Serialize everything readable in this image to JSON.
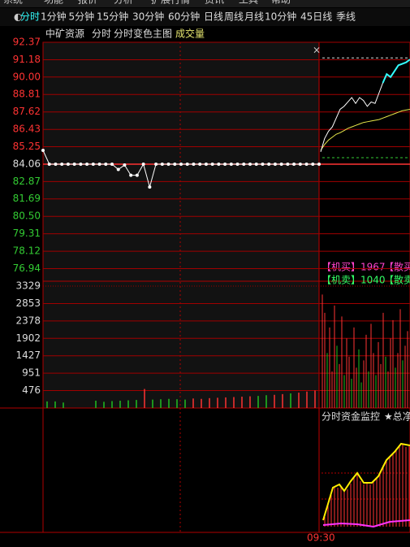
{
  "menu": [
    "系统",
    "功能",
    "报价",
    "分析",
    "扩展行情",
    "资讯",
    "工具",
    "帮助"
  ],
  "tabs": [
    "分时",
    "1分钟",
    "5分钟",
    "15分钟",
    "30分钟",
    "60分钟",
    "日线",
    "周线",
    "月线",
    "10分钟",
    "45日线",
    "季线"
  ],
  "header": {
    "stock": "中矿资源",
    "mode": "分时",
    "main_chart": "分时变色主图",
    "indicator": "成交量"
  },
  "close_button": "×",
  "price_chart": {
    "ylim": [
      76.3,
      92.37
    ],
    "yticks": [
      92.37,
      91.18,
      {
        "value": 90,
        "label": "90.00"
      },
      88.81,
      87.62,
      86.43,
      85.25,
      84.06,
      82.87,
      81.69,
      {
        "value": 80.5,
        "label": "80.50"
      },
      79.31,
      78.12,
      76.94
    ],
    "reference": 84.06,
    "prev_session": [
      85.0,
      84.06,
      84.06,
      84.06,
      84.06,
      84.06,
      84.06,
      84.06,
      84.06,
      84.06,
      84.06,
      84.06,
      83.7,
      84.0,
      83.3,
      83.3,
      84.06,
      82.5,
      84.06,
      84.06,
      84.06,
      84.06,
      84.06,
      84.06,
      84.06,
      84.06,
      84.06,
      84.06,
      84.06,
      84.06,
      84.06,
      84.06,
      84.06,
      84.06,
      84.06,
      84.06,
      84.06,
      84.06,
      84.06,
      84.06,
      84.06,
      84.06,
      84.06,
      84.06,
      84.06
    ],
    "price": [
      84.9,
      85.8,
      86.3,
      86.6,
      87.2,
      87.8,
      88.0,
      88.3,
      88.6,
      88.2,
      88.6,
      88.4,
      88.0,
      88.3,
      88.2,
      88.9,
      89.6,
      90.2,
      90.0,
      90.4,
      90.8,
      90.9,
      91.0,
      91.2
    ],
    "average": [
      85.0,
      85.4,
      85.7,
      85.9,
      86.1,
      86.2,
      86.35,
      86.5,
      86.6,
      86.7,
      86.8,
      86.9,
      86.95,
      87.0,
      87.05,
      87.1,
      87.2,
      87.3,
      87.4,
      87.5,
      87.6,
      87.7,
      87.75,
      87.8
    ],
    "upper_level": 91.3,
    "lower_level": 84.5
  },
  "flow": {
    "inst_buy": "【机买】1967",
    "retail_buy": "【散买",
    "inst_sell": "【机卖】1040",
    "retail_sell": "【散卖"
  },
  "volume_chart": {
    "ylim": [
      0,
      3329
    ],
    "yticks": [
      3329,
      2853,
      2378,
      1902,
      1427,
      951,
      476
    ],
    "prev_session": [
      180,
      180,
      150,
      0,
      0,
      0,
      200,
      170,
      190,
      200,
      210,
      220,
      520,
      230,
      240,
      250,
      240,
      230,
      260,
      250,
      270,
      280,
      290,
      300,
      310,
      320,
      330,
      350,
      360,
      380,
      400,
      420,
      450,
      480
    ],
    "prev_colors": [
      "#1fc01f",
      "#1fc01f",
      "#1fc01f",
      "#1fc01f",
      "#1fc01f",
      "#1fc01f",
      "#1fc01f",
      "#1fc01f",
      "#1fc01f",
      "#1fc01f",
      "#1fc01f",
      "#1fc01f",
      "#ff3333",
      "#1fc01f",
      "#1fc01f",
      "#1fc01f",
      "#1fc01f",
      "#1fc01f",
      "#ff3333",
      "#ff3333",
      "#ff3333",
      "#ff3333",
      "#ff3333",
      "#ff3333",
      "#ff3333",
      "#ff3333",
      "#1fc01f",
      "#1fc01f",
      "#ff3333",
      "#ff3333",
      "#1fc01f",
      "#ff3333",
      "#ff3333",
      "#ff3333"
    ],
    "bars": [
      3100,
      2600,
      1500,
      2200,
      1000,
      2800,
      1700,
      1200,
      2500,
      900,
      1900,
      1400,
      800,
      2200,
      1100,
      1600,
      700,
      1300,
      2000,
      1000,
      2300,
      1500,
      900,
      1800,
      1200,
      2600,
      1400,
      1000,
      1900,
      2400,
      1100,
      1500,
      2700,
      1300,
      1700,
      2100
    ],
    "bar_colors": [
      "#ff3333",
      "#ff3333",
      "#1fc01f",
      "#ff3333",
      "#ff3333",
      "#ff3333",
      "#1fc01f",
      "#ff3333",
      "#ff3333",
      "#1fc01f",
      "#ff3333",
      "#ff3333",
      "#1fc01f",
      "#ff3333",
      "#ff3333",
      "#1fc01f",
      "#1fc01f",
      "#ff3333",
      "#ff3333",
      "#1fc01f",
      "#ff3333",
      "#ff3333",
      "#1fc01f",
      "#ff3333",
      "#ff3333",
      "#ff3333",
      "#1fc01f",
      "#ff3333",
      "#ff3333",
      "#ff3333",
      "#1fc01f",
      "#ff3333",
      "#ff3333",
      "#1fc01f",
      "#ff3333",
      "#ff3333"
    ]
  },
  "monitor": {
    "title": "分时资金监控",
    "total": "★总净"
  },
  "time_label": "09:30"
}
